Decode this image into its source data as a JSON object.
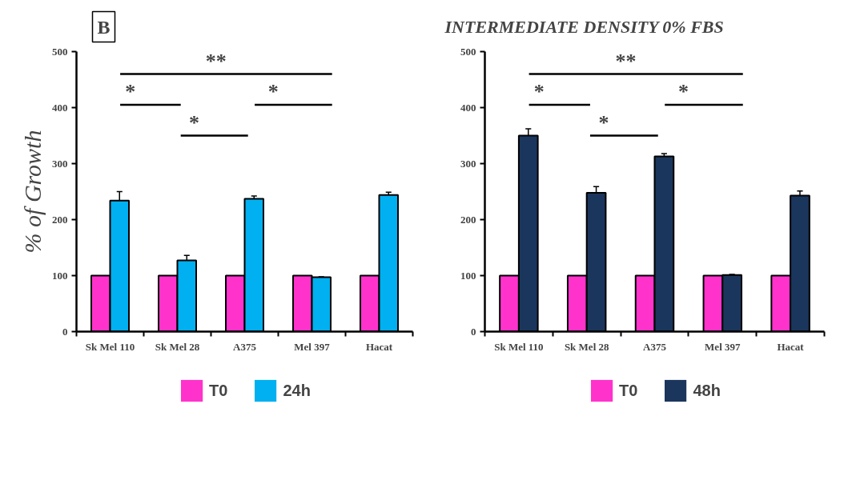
{
  "chart_data": [
    {
      "type": "bar",
      "ylabel": "% of Growth",
      "categories": [
        "Sk Mel 110",
        "Sk Mel 28",
        "A375",
        "Mel 397",
        "Hacat"
      ],
      "series": [
        {
          "name": "T0",
          "color": "#ff33cc",
          "values": [
            100,
            100,
            100,
            100,
            100
          ]
        },
        {
          "name": "24h",
          "color": "#00b0f0",
          "values": [
            234,
            127,
            237,
            97,
            244
          ],
          "errors": [
            [
              234,
              250
            ],
            [
              127,
              136
            ],
            [
              237,
              242
            ],
            [
              97,
              98
            ],
            [
              244,
              249
            ]
          ]
        }
      ],
      "ylim": [
        0,
        500
      ],
      "yticks": [
        0,
        100,
        200,
        300,
        400,
        500
      ],
      "grid": false,
      "legend": "bottom",
      "annotations": [
        "**",
        "*",
        "*",
        "*",
        "B"
      ]
    },
    {
      "type": "bar",
      "title": "INTERMEDIATE DENSITY 0% FBS",
      "categories": [
        "Sk Mel 110",
        "Sk Mel 28",
        "A375",
        "Mel 397",
        "Hacat"
      ],
      "series": [
        {
          "name": "T0",
          "color": "#ff33cc",
          "values": [
            100,
            100,
            100,
            100,
            100
          ]
        },
        {
          "name": "48h",
          "color": "#1b365d",
          "values": [
            350,
            248,
            313,
            101,
            243
          ],
          "errors": [
            [
              350,
              362
            ],
            [
              248,
              259
            ],
            [
              313,
              318
            ],
            [
              101,
              102
            ],
            [
              243,
              251
            ]
          ]
        }
      ],
      "ylim": [
        0,
        500
      ],
      "yticks": [
        0,
        100,
        200,
        300,
        400,
        500
      ],
      "grid": false,
      "legend": "bottom",
      "annotations": [
        "**",
        "*",
        "*",
        "*"
      ]
    }
  ]
}
